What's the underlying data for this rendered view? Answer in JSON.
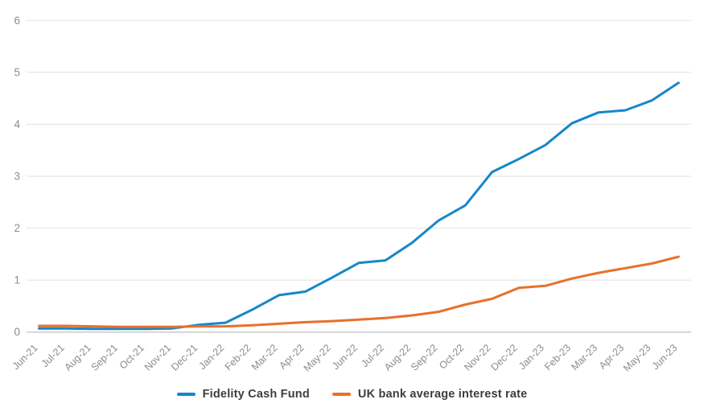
{
  "chart_data": {
    "type": "line",
    "title": "",
    "xlabel": "",
    "ylabel": "",
    "ylim": [
      0,
      6
    ],
    "yticks": [
      0,
      1,
      2,
      3,
      4,
      5,
      6
    ],
    "grid": true,
    "legend_position": "bottom",
    "x": [
      "Jun-21",
      "Jul-21",
      "Aug-21",
      "Sep-21",
      "Oct-21",
      "Nov-21",
      "Dec-21",
      "Jan-22",
      "Feb-22",
      "Mar-22",
      "Apr-22",
      "May-22",
      "Jun-22",
      "Jul-22",
      "Aug-22",
      "Sep-22",
      "Oct-22",
      "Nov-22",
      "Dec-22",
      "Jan-23",
      "Feb-23",
      "Mar-23",
      "Apr-23",
      "May-23",
      "Jun-23"
    ],
    "series": [
      {
        "name": "Fidelity Cash Fund",
        "color": "#1687c9",
        "values": [
          0.07,
          0.07,
          0.06,
          0.06,
          0.06,
          0.07,
          0.14,
          0.18,
          0.43,
          0.71,
          0.78,
          1.05,
          1.33,
          1.38,
          1.72,
          2.15,
          2.44,
          3.08,
          3.33,
          3.6,
          4.02,
          4.23,
          4.27,
          4.46,
          4.8
        ]
      },
      {
        "name": "UK bank average interest rate",
        "color": "#e8702a",
        "values": [
          0.12,
          0.12,
          0.11,
          0.1,
          0.1,
          0.1,
          0.11,
          0.11,
          0.13,
          0.16,
          0.19,
          0.21,
          0.24,
          0.27,
          0.32,
          0.39,
          0.53,
          0.64,
          0.85,
          0.89,
          1.03,
          1.14,
          1.23,
          1.32,
          1.45
        ]
      }
    ],
    "style_colors": {
      "gridline": "#e9e9e9",
      "zero_line": "#d5d5d5",
      "tick_label": "#8c8c8c",
      "legend_text": "#3d3d3d"
    }
  }
}
